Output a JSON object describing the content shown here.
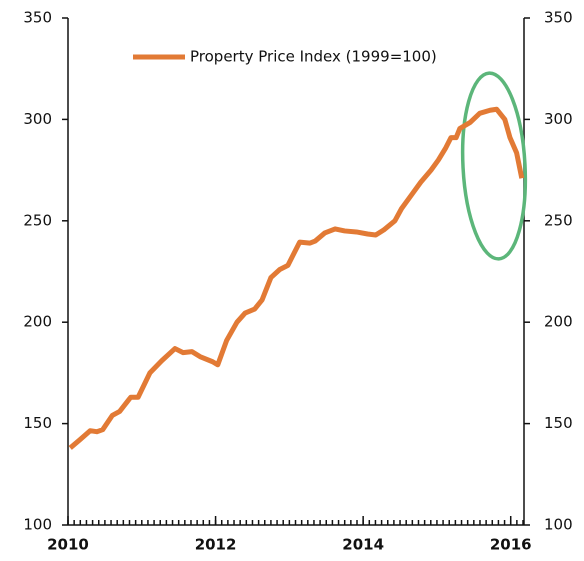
{
  "chart_data": {
    "type": "line",
    "x": [
      2010.03,
      2010.16,
      2010.3,
      2010.39,
      2010.47,
      2010.6,
      2010.7,
      2010.85,
      2010.95,
      2011.11,
      2011.27,
      2011.45,
      2011.56,
      2011.68,
      2011.79,
      2011.96,
      2012.03,
      2012.15,
      2012.29,
      2012.4,
      2012.53,
      2012.63,
      2012.75,
      2012.87,
      2012.98,
      2013.07,
      2013.14,
      2013.28,
      2013.35,
      2013.48,
      2013.62,
      2013.75,
      2013.91,
      2014.06,
      2014.17,
      2014.28,
      2014.43,
      2014.52,
      2014.66,
      2014.78,
      2014.92,
      2015.02,
      2015.12,
      2015.19,
      2015.26,
      2015.31,
      2015.45,
      2015.58,
      2015.72,
      2015.81,
      2015.92,
      2015.99,
      2016.08,
      2016.15
    ],
    "series": [
      {
        "name": "Property Price Index (1999=100)",
        "color": "#e27a35",
        "values": [
          138,
          142,
          146.5,
          146,
          147,
          154,
          156,
          163,
          163,
          175,
          181,
          187,
          185,
          185.5,
          183,
          180.5,
          179,
          191,
          200,
          204.5,
          206.5,
          211,
          222,
          226,
          228,
          234.5,
          239.5,
          239,
          240,
          244,
          246,
          245,
          244.5,
          243.5,
          243,
          245.5,
          250,
          256,
          263,
          269,
          275,
          280,
          286,
          291,
          291,
          295.5,
          298.5,
          303,
          304.5,
          305,
          300,
          291,
          283.5,
          271
        ]
      }
    ],
    "xlim": [
      2010,
      2016.18
    ],
    "xticks": [
      2010,
      2012,
      2014,
      2016
    ],
    "ylim": [
      100,
      350
    ],
    "yticks": [
      100,
      150,
      200,
      250,
      300,
      350
    ],
    "y2lim": [
      100,
      350
    ],
    "y2ticks": [
      100,
      150,
      200,
      250,
      300,
      350
    ]
  }
}
